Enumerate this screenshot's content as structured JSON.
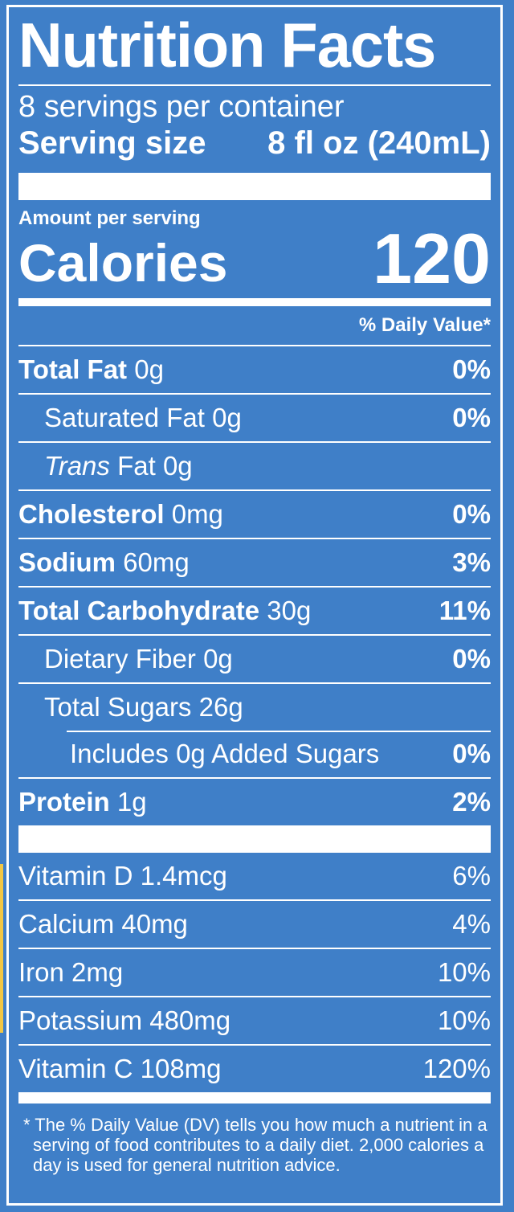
{
  "title": "Nutrition Facts",
  "servings_per_container": "8 servings per container",
  "serving_size": {
    "label": "Serving size",
    "value": "8 fl oz (240mL)"
  },
  "amount_per_serving": "Amount per serving",
  "calories": {
    "label": "Calories",
    "value": "120"
  },
  "daily_value_header": "% Daily Value*",
  "nutrients": [
    {
      "name": "Total Fat",
      "amount": "0g",
      "dv": "0%"
    },
    {
      "name": "Saturated Fat",
      "amount": "0g",
      "dv": "0%"
    },
    {
      "name": "Trans",
      "name_rest": "Fat",
      "amount": "0g",
      "dv": ""
    },
    {
      "name": "Cholesterol",
      "amount": "0mg",
      "dv": "0%"
    },
    {
      "name": "Sodium",
      "amount": "60mg",
      "dv": "3%"
    },
    {
      "name": "Total Carbohydrate",
      "amount": "30g",
      "dv": "11%"
    },
    {
      "name": "Dietary Fiber",
      "amount": "0g",
      "dv": "0%"
    },
    {
      "name": "Total Sugars",
      "amount": "26g",
      "dv": ""
    },
    {
      "name": "Includes 0g Added Sugars",
      "amount": "",
      "dv": "0%"
    },
    {
      "name": "Protein",
      "amount": "1g",
      "dv": "2%"
    }
  ],
  "vitamins": [
    {
      "label": "Vitamin D 1.4mcg",
      "dv": "6%"
    },
    {
      "label": "Calcium 40mg",
      "dv": "4%"
    },
    {
      "label": "Iron 2mg",
      "dv": "10%"
    },
    {
      "label": "Potassium 480mg",
      "dv": "10%"
    },
    {
      "label": "Vitamin C 108mg",
      "dv": "120%"
    }
  ],
  "footnote": "* The % Daily Value (DV) tells you how much a nutrient in a serving of food contributes to a daily diet. 2,000 calories a day is used for general nutrition advice.",
  "colors": {
    "background": "#3f7fc8",
    "text": "#ffffff",
    "edge_accent": "#f2c744"
  }
}
